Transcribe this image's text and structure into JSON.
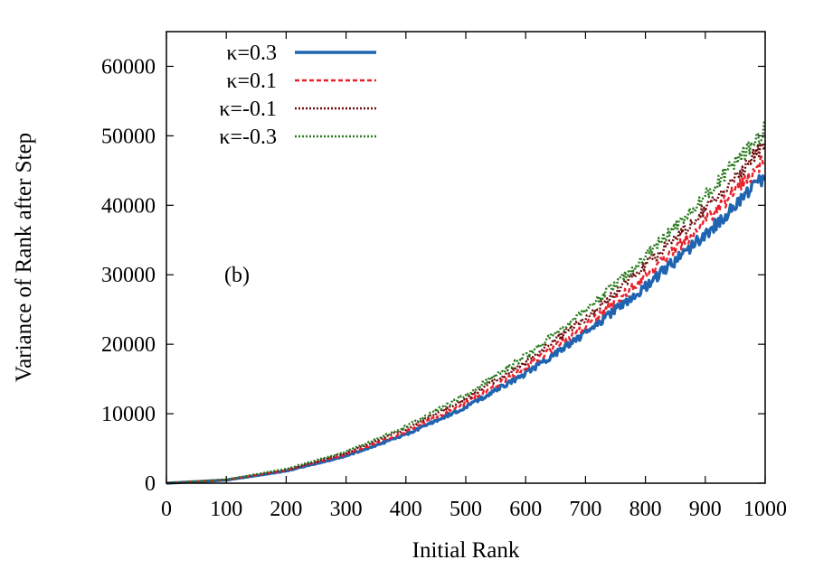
{
  "chart_data": {
    "type": "line",
    "title": "",
    "xlabel": "Initial Rank",
    "ylabel": "Variance of Rank after Step",
    "annotation": "(b)",
    "xlim": [
      0,
      1000
    ],
    "ylim": [
      0,
      65000
    ],
    "xticks": [
      0,
      100,
      200,
      300,
      400,
      500,
      600,
      700,
      800,
      900,
      1000
    ],
    "yticks": [
      0,
      10000,
      20000,
      30000,
      40000,
      50000,
      60000
    ],
    "xtick_labels": [
      "0",
      "100",
      "200",
      "300",
      "400",
      "500",
      "600",
      "700",
      "800",
      "900",
      "1000"
    ],
    "ytick_labels": [
      "0",
      "10000",
      "20000",
      "30000",
      "40000",
      "50000",
      "60000"
    ],
    "grid": false,
    "legend_position": "top-left",
    "x": [
      0,
      100,
      200,
      300,
      400,
      500,
      600,
      700,
      800,
      900,
      1000
    ],
    "series": [
      {
        "name": "κ=0.3",
        "color": "#1f64b0",
        "style": "solid",
        "values": [
          0,
          450,
          1750,
          3900,
          7000,
          10950,
          15800,
          21600,
          28300,
          35800,
          44300
        ]
      },
      {
        "name": "κ=0.1",
        "color": "#e8202a",
        "style": "dashed",
        "values": [
          0,
          480,
          1850,
          4100,
          7400,
          11550,
          16650,
          22700,
          29700,
          37600,
          46500
        ]
      },
      {
        "name": "κ=-0.1",
        "color": "#6e0a0a",
        "style": "dotted",
        "values": [
          0,
          500,
          1950,
          4350,
          7800,
          12150,
          17500,
          23850,
          31200,
          39500,
          48800
        ]
      },
      {
        "name": "κ=-0.3",
        "color": "#2a7a1e",
        "style": "dotted",
        "values": [
          0,
          520,
          2050,
          4550,
          8150,
          12700,
          18300,
          24900,
          32600,
          41300,
          51000
        ]
      }
    ]
  }
}
